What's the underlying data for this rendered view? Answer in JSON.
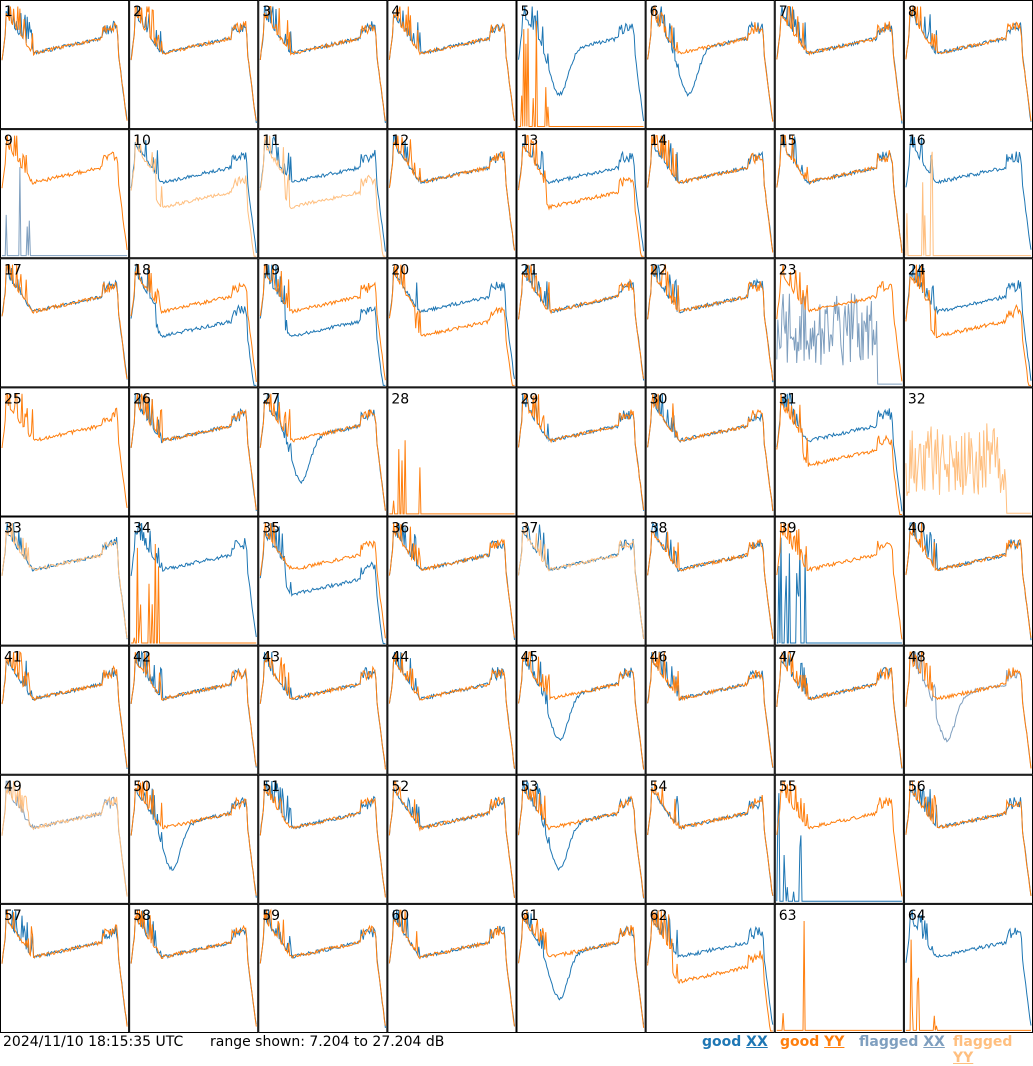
{
  "footer": {
    "timestamp": "2024/11/10 18:15:35 UTC",
    "range": "range shown: 7.204 to 27.204 dB"
  },
  "legend": {
    "good_xx": {
      "word": "good",
      "pol": "XX",
      "color": "#1f77b4"
    },
    "good_yy": {
      "word": "good",
      "pol": "YY",
      "color": "#ff7f0e"
    },
    "flagged_xx": {
      "word": "flagged",
      "pol": "XX",
      "color": "#7f9fbf"
    },
    "flagged_yy": {
      "word": "flagged",
      "pol": "YY",
      "color": "#ffbf7f"
    }
  },
  "chart_data": {
    "type": "line",
    "layout": "8x8 small multiples",
    "y_range_db": [
      7.204,
      27.204
    ],
    "panels": [
      {
        "label": "1",
        "xx": "normal",
        "yy": "normal"
      },
      {
        "label": "2",
        "xx": "normal",
        "yy": "normal"
      },
      {
        "label": "3",
        "xx": "normal",
        "yy": "normal"
      },
      {
        "label": "4",
        "xx": "normal",
        "yy": "normal"
      },
      {
        "label": "5",
        "xx": "dip",
        "yy": "dead"
      },
      {
        "label": "6",
        "xx": "dip",
        "yy": "normal"
      },
      {
        "label": "7",
        "xx": "normal",
        "yy": "normal"
      },
      {
        "label": "8",
        "xx": "normal",
        "yy": "normal"
      },
      {
        "label": "9",
        "xx": "flagged_dead",
        "yy": "normal"
      },
      {
        "label": "10",
        "xx": "normal",
        "yy": "flagged_low"
      },
      {
        "label": "11",
        "xx": "normal",
        "yy": "flagged_low"
      },
      {
        "label": "12",
        "xx": "normal",
        "yy": "normal"
      },
      {
        "label": "13",
        "xx": "normal",
        "yy": "low"
      },
      {
        "label": "14",
        "xx": "normal",
        "yy": "normal"
      },
      {
        "label": "15",
        "xx": "normal",
        "yy": "normal"
      },
      {
        "label": "16",
        "xx": "normal",
        "yy": "flagged_dead"
      },
      {
        "label": "17",
        "xx": "normal",
        "yy": "normal"
      },
      {
        "label": "18",
        "xx": "low",
        "yy": "normal"
      },
      {
        "label": "19",
        "xx": "low",
        "yy": "normal"
      },
      {
        "label": "20",
        "xx": "normal",
        "yy": "low"
      },
      {
        "label": "21",
        "xx": "normal",
        "yy": "normal"
      },
      {
        "label": "22",
        "xx": "normal",
        "yy": "normal"
      },
      {
        "label": "23",
        "xx": "flagged_noisy",
        "yy": "normal"
      },
      {
        "label": "24",
        "xx": "normal",
        "yy": "low"
      },
      {
        "label": "25",
        "xx": "none",
        "yy": "normal"
      },
      {
        "label": "26",
        "xx": "normal",
        "yy": "normal"
      },
      {
        "label": "27",
        "xx": "dip",
        "yy": "normal"
      },
      {
        "label": "28",
        "xx": "none",
        "yy": "dead"
      },
      {
        "label": "29",
        "xx": "normal",
        "yy": "normal"
      },
      {
        "label": "30",
        "xx": "normal",
        "yy": "normal"
      },
      {
        "label": "31",
        "xx": "normal",
        "yy": "low"
      },
      {
        "label": "32",
        "xx": "none",
        "yy": "flagged_noisy"
      },
      {
        "label": "33",
        "xx": "normal",
        "yy": "flagged_normal"
      },
      {
        "label": "34",
        "xx": "normal",
        "yy": "dead"
      },
      {
        "label": "35",
        "xx": "low",
        "yy": "normal"
      },
      {
        "label": "36",
        "xx": "normal",
        "yy": "normal"
      },
      {
        "label": "37",
        "xx": "normal",
        "yy": "flagged_normal"
      },
      {
        "label": "38",
        "xx": "normal",
        "yy": "normal"
      },
      {
        "label": "39",
        "xx": "dead",
        "yy": "normal"
      },
      {
        "label": "40",
        "xx": "normal",
        "yy": "normal"
      },
      {
        "label": "41",
        "xx": "normal",
        "yy": "normal"
      },
      {
        "label": "42",
        "xx": "normal",
        "yy": "normal"
      },
      {
        "label": "43",
        "xx": "normal",
        "yy": "normal"
      },
      {
        "label": "44",
        "xx": "normal",
        "yy": "normal"
      },
      {
        "label": "45",
        "xx": "dip",
        "yy": "normal"
      },
      {
        "label": "46",
        "xx": "normal",
        "yy": "normal"
      },
      {
        "label": "47",
        "xx": "normal",
        "yy": "normal"
      },
      {
        "label": "48",
        "xx": "flagged_dip",
        "yy": "normal"
      },
      {
        "label": "49",
        "xx": "flagged_normal",
        "yy": "flagged_normal"
      },
      {
        "label": "50",
        "xx": "dip",
        "yy": "normal"
      },
      {
        "label": "51",
        "xx": "normal",
        "yy": "normal"
      },
      {
        "label": "52",
        "xx": "normal",
        "yy": "normal"
      },
      {
        "label": "53",
        "xx": "dip",
        "yy": "normal"
      },
      {
        "label": "54",
        "xx": "normal",
        "yy": "normal"
      },
      {
        "label": "55",
        "xx": "dead",
        "yy": "normal"
      },
      {
        "label": "56",
        "xx": "normal",
        "yy": "normal"
      },
      {
        "label": "57",
        "xx": "normal",
        "yy": "normal"
      },
      {
        "label": "58",
        "xx": "normal",
        "yy": "normal"
      },
      {
        "label": "59",
        "xx": "normal",
        "yy": "normal"
      },
      {
        "label": "60",
        "xx": "normal",
        "yy": "normal"
      },
      {
        "label": "61",
        "xx": "dip",
        "yy": "normal"
      },
      {
        "label": "62",
        "xx": "normal",
        "yy": "low"
      },
      {
        "label": "63",
        "xx": "none",
        "yy": "dead"
      },
      {
        "label": "64",
        "xx": "normal",
        "yy": "dead"
      }
    ]
  }
}
